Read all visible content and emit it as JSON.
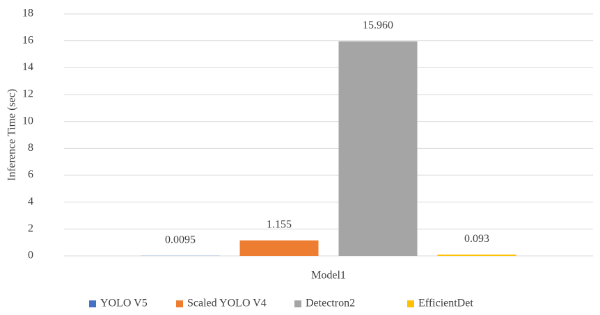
{
  "chart_data": {
    "type": "bar",
    "y_label": "Inference Time (sec)",
    "categories": [
      "Model1"
    ],
    "series": [
      {
        "name": "YOLO V5",
        "color": "#4472c4",
        "values": [
          0.0095
        ],
        "value_labels": [
          "0.0095"
        ]
      },
      {
        "name": "Scaled YOLO V4",
        "color": "#ed7d31",
        "values": [
          1.155
        ],
        "value_labels": [
          "1.155"
        ]
      },
      {
        "name": "Detectron2",
        "color": "#a5a5a5",
        "values": [
          15.96
        ],
        "value_labels": [
          "15.960"
        ]
      },
      {
        "name": "EfficientDet",
        "color": "#ffc000",
        "values": [
          0.093
        ],
        "value_labels": [
          "0.093"
        ]
      }
    ],
    "ylim": [
      0,
      18
    ],
    "yticks": [
      0,
      2,
      4,
      6,
      8,
      10,
      12,
      14,
      16,
      18
    ],
    "grid": true,
    "legend": "bottom"
  }
}
